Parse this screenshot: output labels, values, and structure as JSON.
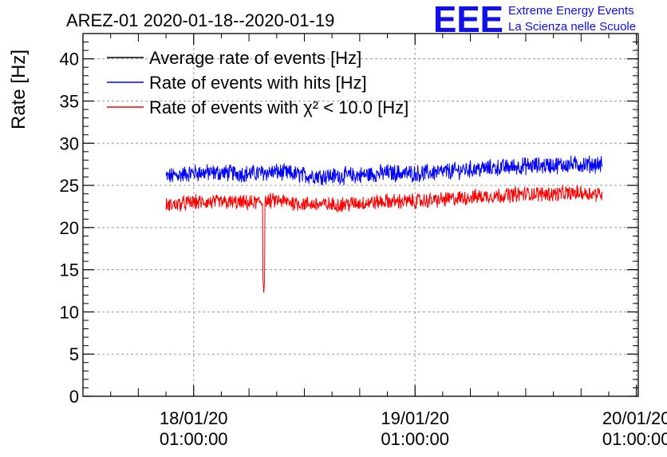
{
  "title": "AREZ-01 2020-01-18--2020-01-19",
  "logo": {
    "mark": "EEE",
    "line1": "Extreme Energy Events",
    "line2": "La Scienza nelle Scuole",
    "color": "#1010e8"
  },
  "chart_data": {
    "type": "line",
    "title": "AREZ-01 2020-01-18--2020-01-19",
    "ylabel": "Rate [Hz]",
    "xlabel": "",
    "ylim": [
      0,
      43
    ],
    "yticks": [
      0,
      5,
      10,
      15,
      20,
      25,
      30,
      35,
      40
    ],
    "ytick_labels": [
      "0",
      "5",
      "10",
      "15",
      "20",
      "25",
      "30",
      "35",
      "40"
    ],
    "xlim_hours": [
      -12.0,
      48.2
    ],
    "xticks": [
      {
        "hours": 0,
        "date": "18/01/20",
        "time": "01:00:00"
      },
      {
        "hours": 24,
        "date": "19/01/20",
        "time": "01:00:00"
      },
      {
        "hours": 48,
        "date": "20/01/20",
        "time": "01:00:00"
      }
    ],
    "grid": true,
    "legend_position": "top-left",
    "series": [
      {
        "name": "Average rate of events [Hz]",
        "color": "#000000",
        "x_hours": [],
        "values": []
      },
      {
        "name": "Rate of events with hits [Hz]",
        "color": "#0000ff",
        "x_hours": [
          -3.0,
          0,
          3,
          6,
          9,
          12,
          15,
          18,
          21,
          24,
          27,
          30,
          33,
          36,
          39,
          42,
          44.3
        ],
        "values": [
          26.0,
          26.5,
          26.5,
          26.4,
          26.6,
          26.2,
          26.1,
          26.2,
          26.5,
          26.4,
          26.6,
          26.9,
          27.1,
          27.3,
          27.4,
          27.5,
          27.5
        ],
        "noise": 0.9
      },
      {
        "name": "Rate of events with χ² < 10.0 [Hz]",
        "color": "#ff0000",
        "x_hours": [
          -3.0,
          0,
          3,
          6,
          9,
          12,
          15,
          18,
          21,
          24,
          27,
          30,
          33,
          36,
          39,
          42,
          44.3
        ],
        "values": [
          22.6,
          23.0,
          23.0,
          22.9,
          23.2,
          22.8,
          22.7,
          22.9,
          23.1,
          23.1,
          23.3,
          23.6,
          23.8,
          24.0,
          24.0,
          24.1,
          24.0
        ],
        "noise": 0.8,
        "dip": {
          "x_hours": 7.6,
          "value": 12.2
        }
      }
    ]
  }
}
